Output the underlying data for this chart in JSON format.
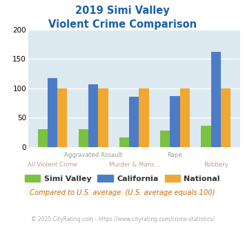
{
  "title_line1": "2019 Simi Valley",
  "title_line2": "Violent Crime Comparison",
  "categories": [
    "All Violent Crime",
    "Aggravated Assault",
    "Murder & Mans...",
    "Rape",
    "Robbery"
  ],
  "top_labels": {
    "1": "Aggravated Assault",
    "3": "Rape"
  },
  "bottom_labels": {
    "0": "All Violent Crime",
    "2": "Murder & Mans...",
    "4": "Robbery"
  },
  "simi_valley": [
    31,
    31,
    16,
    28,
    36
  ],
  "california": [
    117,
    107,
    86,
    87,
    162
  ],
  "national": [
    100,
    100,
    100,
    100,
    100
  ],
  "colors": {
    "simi_valley": "#7bc142",
    "california": "#4d7cc7",
    "national": "#f0a830"
  },
  "ylim": [
    0,
    200
  ],
  "yticks": [
    0,
    50,
    100,
    150,
    200
  ],
  "background_color": "#dce9f0",
  "title_color": "#1a5fa8",
  "top_label_color": "#999999",
  "bottom_label_color": "#b8a090",
  "legend_text_color": "#333333",
  "subtitle_note": "Compared to U.S. average. (U.S. average equals 100)",
  "footer": "© 2025 CityRating.com - https://www.cityrating.com/crime-statistics/",
  "subtitle_color": "#cc6600",
  "footer_color": "#aaaaaa",
  "footer_link_color": "#4d7cc7"
}
